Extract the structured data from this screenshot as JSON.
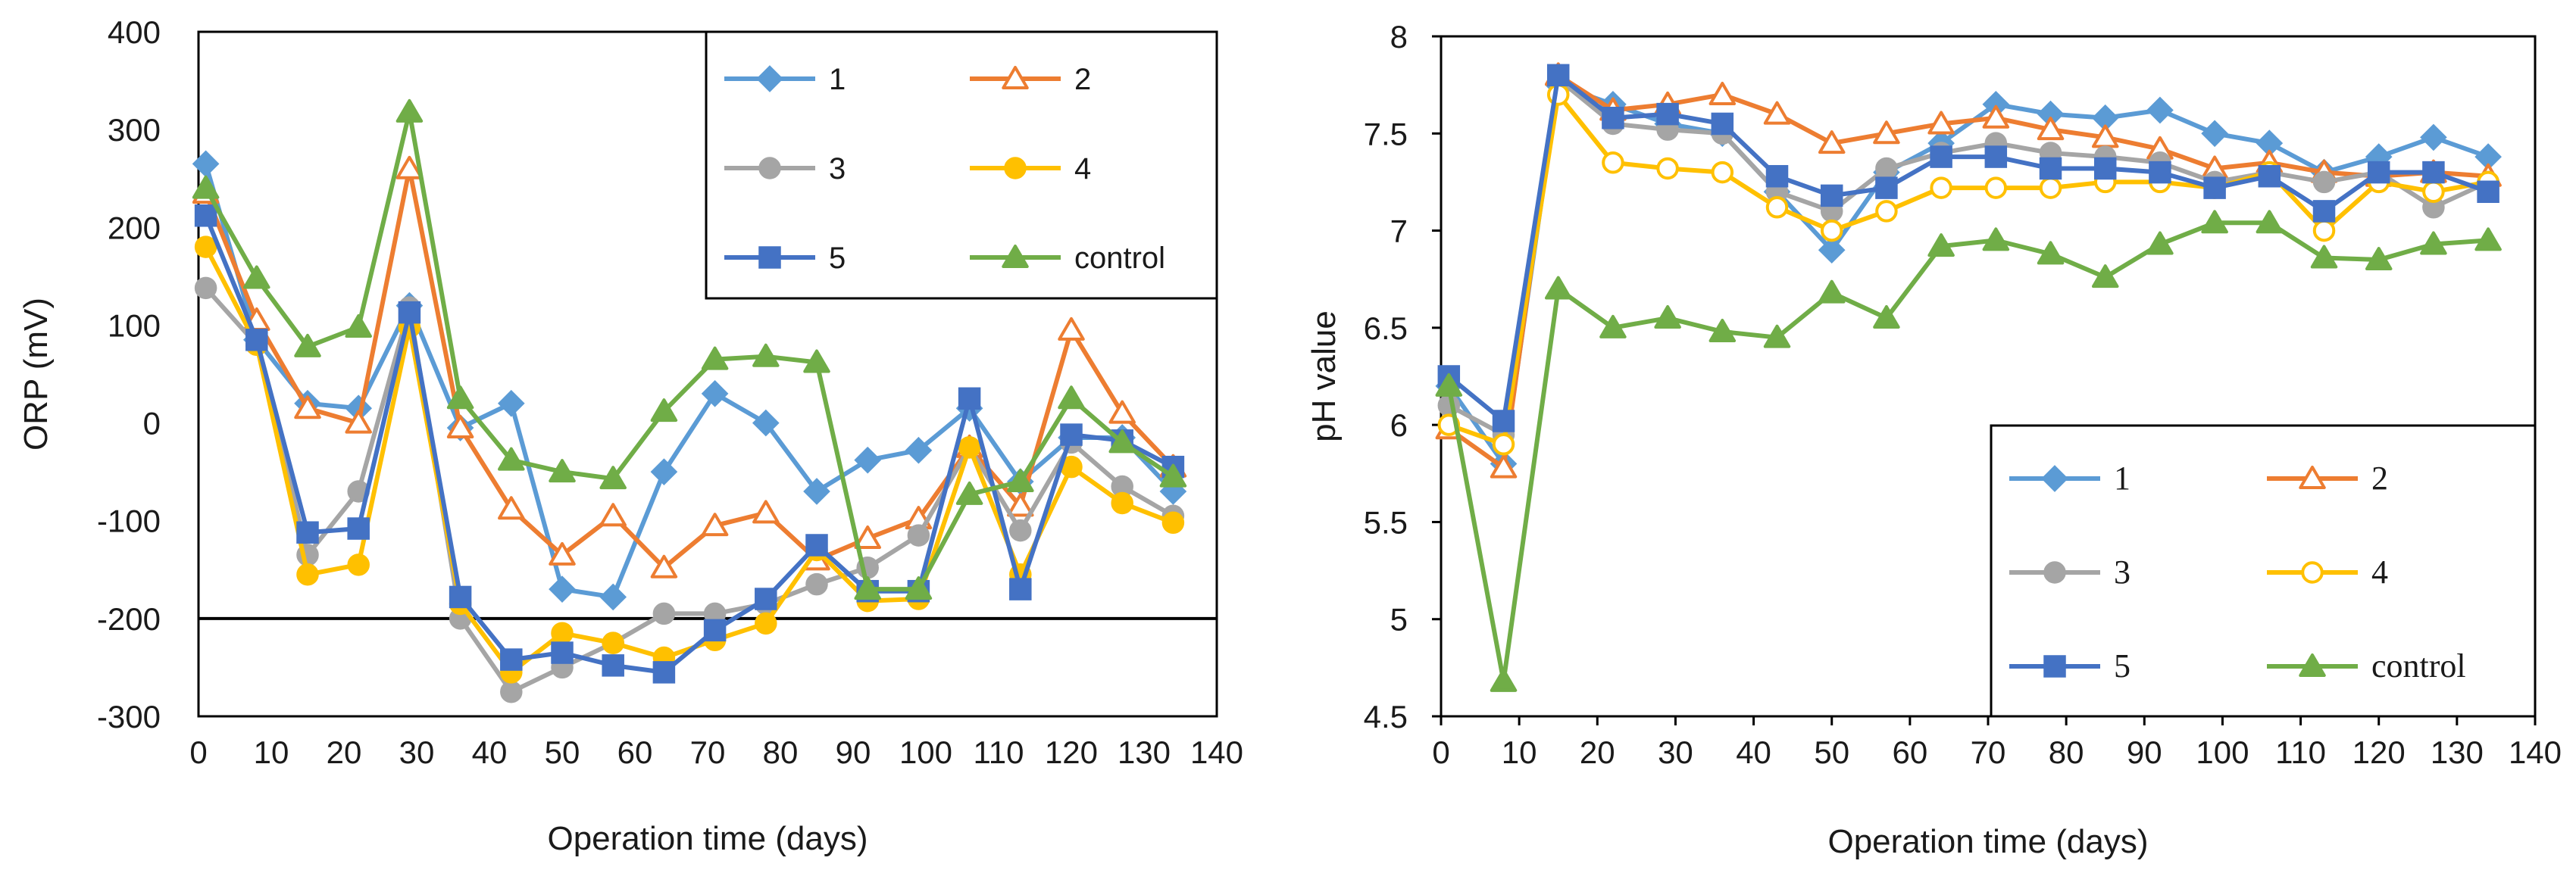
{
  "chart_data": [
    {
      "type": "line",
      "title": "",
      "xlabel": "Operation time (days)",
      "ylabel": "ORP  (mV)",
      "xlim": [
        0,
        140
      ],
      "ylim": [
        -300,
        400
      ],
      "xticks": [
        0,
        10,
        20,
        30,
        40,
        50,
        60,
        70,
        80,
        90,
        100,
        110,
        120,
        130,
        140
      ],
      "yticks": [
        400,
        300,
        200,
        100,
        0,
        -100,
        -200,
        -300
      ],
      "reference_line": -200,
      "legend_position": "top-right",
      "series": [
        {
          "name": "1",
          "color": "#5B9BD5",
          "marker": "diamond",
          "filled": true,
          "x": [
            1,
            8,
            15,
            22,
            29,
            36,
            43,
            50,
            57,
            64,
            71,
            78,
            85,
            92,
            99,
            106,
            113,
            120,
            127,
            134
          ],
          "y": [
            265,
            85,
            20,
            15,
            120,
            -5,
            20,
            -170,
            -178,
            -50,
            30,
            0,
            -70,
            -38,
            -28,
            15,
            -60,
            -15,
            -15,
            -70
          ]
        },
        {
          "name": "2",
          "color": "#ED7D31",
          "marker": "triangle",
          "filled": false,
          "x": [
            1,
            8,
            15,
            22,
            29,
            36,
            43,
            50,
            57,
            64,
            71,
            78,
            85,
            92,
            99,
            106,
            113,
            120,
            127,
            134
          ],
          "y": [
            235,
            105,
            15,
            0,
            260,
            -5,
            -88,
            -135,
            -95,
            -148,
            -105,
            -92,
            -140,
            -118,
            -98,
            -25,
            -85,
            95,
            10,
            -45
          ]
        },
        {
          "name": "3",
          "color": "#A5A5A5",
          "marker": "circle",
          "filled": true,
          "x": [
            1,
            8,
            15,
            22,
            29,
            36,
            43,
            50,
            57,
            64,
            71,
            78,
            85,
            92,
            99,
            106,
            113,
            120,
            127,
            134
          ],
          "y": [
            138,
            80,
            -135,
            -70,
            118,
            -200,
            -275,
            -250,
            -225,
            -195,
            -195,
            -185,
            -165,
            -148,
            -115,
            -25,
            -110,
            -20,
            -65,
            -95
          ]
        },
        {
          "name": "4",
          "color": "#FFC000",
          "marker": "circle",
          "filled": true,
          "x": [
            1,
            8,
            15,
            22,
            29,
            36,
            43,
            50,
            57,
            64,
            71,
            78,
            85,
            92,
            99,
            106,
            113,
            120,
            127,
            134
          ],
          "y": [
            180,
            80,
            -155,
            -145,
            98,
            -185,
            -255,
            -215,
            -225,
            -240,
            -222,
            -205,
            -130,
            -182,
            -180,
            -25,
            -155,
            -45,
            -82,
            -102
          ]
        },
        {
          "name": "5",
          "color": "#4472C4",
          "marker": "square",
          "filled": true,
          "x": [
            1,
            8,
            15,
            22,
            29,
            36,
            43,
            50,
            57,
            64,
            71,
            78,
            85,
            92,
            99,
            106,
            113,
            120,
            127,
            134
          ],
          "y": [
            212,
            85,
            -112,
            -108,
            113,
            -178,
            -242,
            -235,
            -248,
            -255,
            -212,
            -180,
            -125,
            -172,
            -172,
            25,
            -170,
            -12,
            -18,
            -45
          ]
        },
        {
          "name": "control",
          "color": "#70AD47",
          "marker": "triangle",
          "filled": true,
          "x": [
            1,
            8,
            15,
            22,
            29,
            36,
            43,
            50,
            57,
            64,
            71,
            78,
            85,
            92,
            99,
            106,
            113,
            120,
            127,
            134
          ],
          "y": [
            240,
            148,
            78,
            98,
            318,
            25,
            -38,
            -50,
            -57,
            12,
            65,
            68,
            62,
            -170,
            -170,
            -73,
            -60,
            25,
            -20,
            -55
          ]
        }
      ]
    },
    {
      "type": "line",
      "title": "",
      "xlabel": "Operation time (days)",
      "ylabel": "pH value",
      "xlim": [
        0,
        140
      ],
      "ylim": [
        4.5,
        8
      ],
      "xticks": [
        0,
        10,
        20,
        30,
        40,
        50,
        60,
        70,
        80,
        90,
        100,
        110,
        120,
        130,
        140
      ],
      "yticks": [
        "8",
        "7.5",
        "7",
        "6.5",
        "6",
        "5.5",
        "5",
        "4.5"
      ],
      "legend_position": "bottom-right",
      "series": [
        {
          "name": "1",
          "color": "#5B9BD5",
          "marker": "diamond",
          "filled": true,
          "x": [
            1,
            8,
            15,
            22,
            29,
            36,
            43,
            50,
            57,
            64,
            71,
            78,
            85,
            92,
            99,
            106,
            113,
            120,
            127,
            134
          ],
          "y": [
            6.2,
            5.8,
            7.75,
            7.65,
            7.55,
            7.5,
            7.2,
            6.9,
            7.3,
            7.45,
            7.65,
            7.6,
            7.58,
            7.62,
            7.5,
            7.45,
            7.3,
            7.38,
            7.48,
            7.38
          ]
        },
        {
          "name": "2",
          "color": "#ED7D31",
          "marker": "triangle",
          "filled": false,
          "x": [
            1,
            8,
            15,
            22,
            29,
            36,
            43,
            50,
            57,
            64,
            71,
            78,
            85,
            92,
            99,
            106,
            113,
            120,
            127,
            134
          ],
          "y": [
            5.98,
            5.78,
            7.8,
            7.62,
            7.65,
            7.7,
            7.6,
            7.45,
            7.5,
            7.55,
            7.58,
            7.52,
            7.48,
            7.42,
            7.32,
            7.35,
            7.3,
            7.28,
            7.3,
            7.28
          ]
        },
        {
          "name": "3",
          "color": "#A5A5A5",
          "marker": "circle",
          "filled": true,
          "x": [
            1,
            8,
            15,
            22,
            29,
            36,
            43,
            50,
            57,
            64,
            71,
            78,
            85,
            92,
            99,
            106,
            113,
            120,
            127,
            134
          ],
          "y": [
            6.1,
            5.95,
            7.78,
            7.55,
            7.52,
            7.5,
            7.2,
            7.1,
            7.32,
            7.4,
            7.45,
            7.4,
            7.38,
            7.35,
            7.25,
            7.3,
            7.25,
            7.3,
            7.12,
            7.25
          ]
        },
        {
          "name": "4",
          "color": "#FFC000",
          "marker": "circle",
          "filled": false,
          "x": [
            1,
            8,
            15,
            22,
            29,
            36,
            43,
            50,
            57,
            64,
            71,
            78,
            85,
            92,
            99,
            106,
            113,
            120,
            127,
            134
          ],
          "y": [
            6.0,
            5.9,
            7.7,
            7.35,
            7.32,
            7.3,
            7.12,
            7.0,
            7.1,
            7.22,
            7.22,
            7.22,
            7.25,
            7.25,
            7.22,
            7.3,
            7.0,
            7.25,
            7.2,
            7.25
          ]
        },
        {
          "name": "5",
          "color": "#4472C4",
          "marker": "square",
          "filled": true,
          "x": [
            1,
            8,
            15,
            22,
            29,
            36,
            43,
            50,
            57,
            64,
            71,
            78,
            85,
            92,
            99,
            106,
            113,
            120,
            127,
            134
          ],
          "y": [
            6.25,
            6.02,
            7.8,
            7.58,
            7.6,
            7.55,
            7.28,
            7.18,
            7.22,
            7.38,
            7.38,
            7.32,
            7.32,
            7.3,
            7.22,
            7.28,
            7.1,
            7.3,
            7.3,
            7.2
          ]
        },
        {
          "name": "control",
          "color": "#70AD47",
          "marker": "triangle",
          "filled": true,
          "x": [
            1,
            8,
            15,
            22,
            29,
            36,
            43,
            50,
            57,
            64,
            71,
            78,
            85,
            92,
            99,
            106,
            113,
            120,
            127,
            134
          ],
          "y": [
            6.2,
            4.68,
            6.7,
            6.5,
            6.55,
            6.48,
            6.45,
            6.68,
            6.55,
            6.92,
            6.95,
            6.88,
            6.76,
            6.93,
            7.04,
            7.04,
            6.86,
            6.85,
            6.93,
            6.95
          ]
        }
      ]
    }
  ]
}
